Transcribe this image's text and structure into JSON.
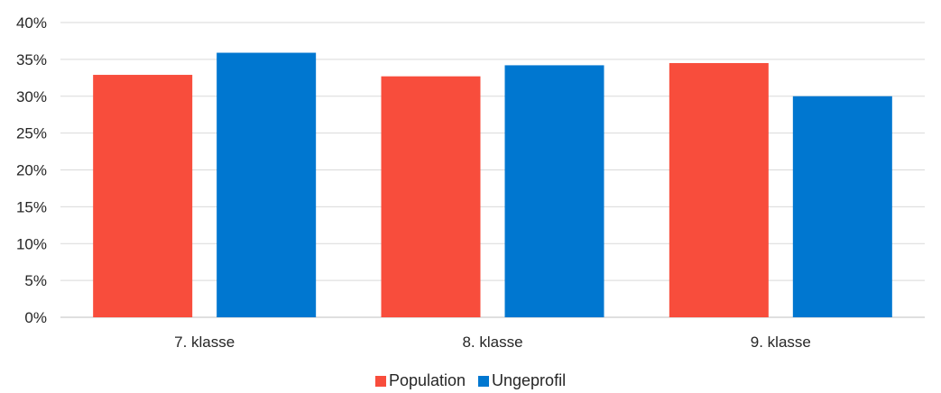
{
  "chart_data": {
    "type": "bar",
    "categories": [
      "7. klasse",
      "8. klasse",
      "9. klasse"
    ],
    "series": [
      {
        "name": "Population",
        "color": "#F84D3C",
        "values": [
          32.9,
          32.7,
          34.5
        ]
      },
      {
        "name": "Ungeprofil",
        "color": "#0077D0",
        "values": [
          35.9,
          34.2,
          30.0
        ]
      }
    ],
    "ylim": [
      0,
      40
    ],
    "yticks": [
      "0%",
      "5%",
      "10%",
      "15%",
      "20%",
      "25%",
      "30%",
      "35%",
      "40%"
    ],
    "grid": true,
    "legend_position": "bottom"
  }
}
